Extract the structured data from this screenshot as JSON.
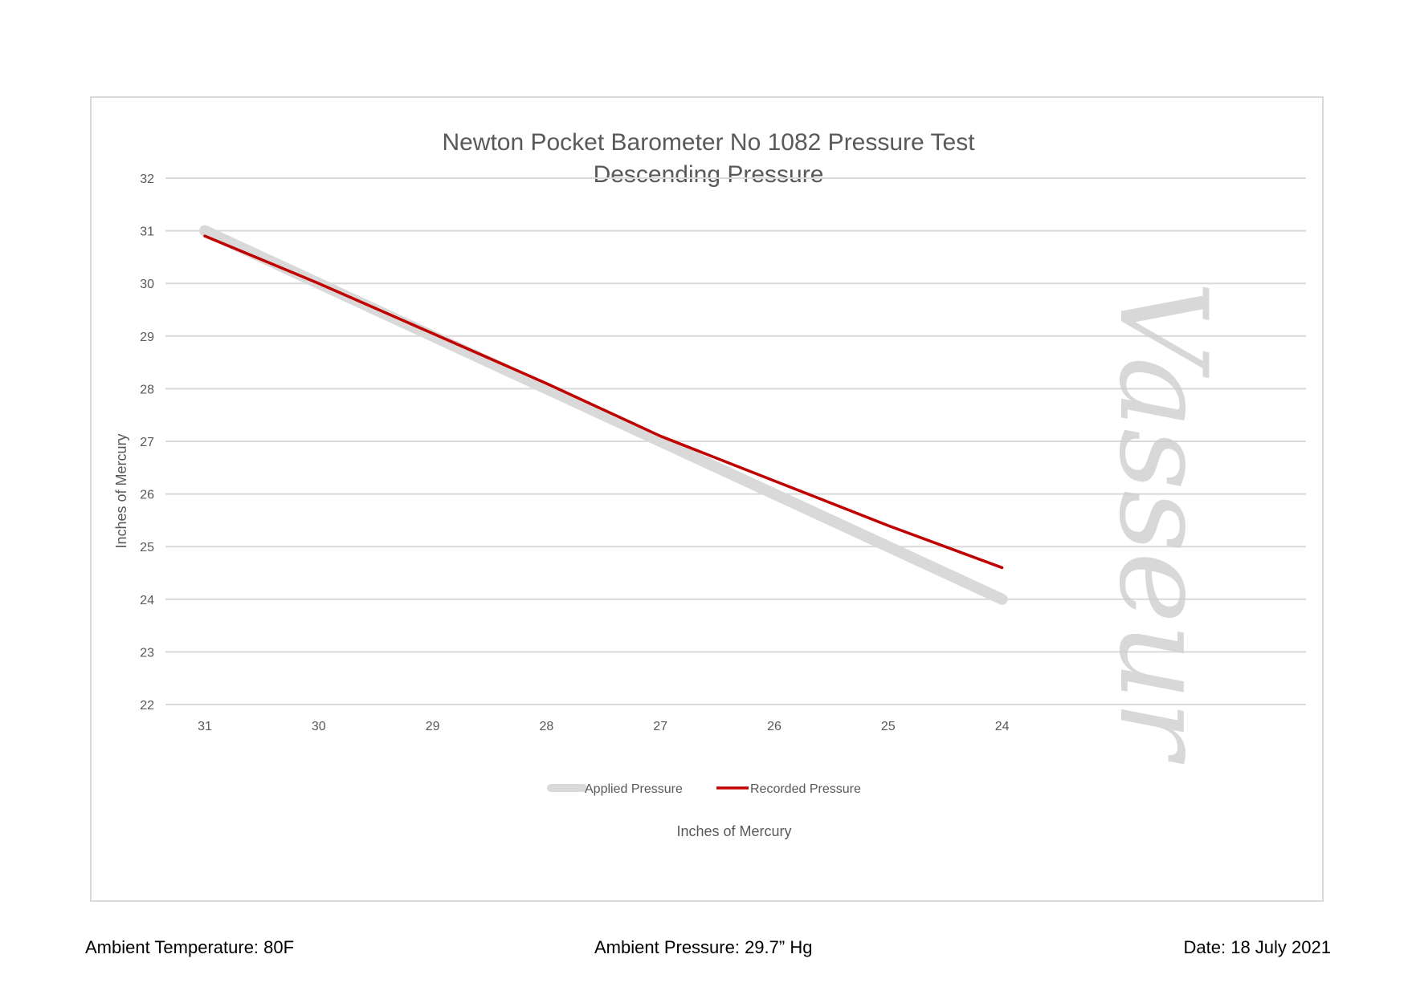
{
  "chart_data": {
    "type": "line",
    "title": "Newton Pocket Barometer No 1082 Pressure Test",
    "subtitle": "Descending Pressure",
    "xlabel": "Inches of Mercury",
    "ylabel": "Inches of Mercury",
    "categories": [
      "31",
      "30",
      "29",
      "28",
      "27",
      "26",
      "25",
      "24"
    ],
    "ylim": [
      22,
      32
    ],
    "yticks": [
      "22",
      "23",
      "24",
      "25",
      "26",
      "27",
      "28",
      "29",
      "30",
      "31",
      "32"
    ],
    "grid": true,
    "legend_position": "bottom",
    "series": [
      {
        "name": "Applied Pressure",
        "color": "#d9d9d9",
        "values": [
          31,
          30,
          29,
          28,
          27,
          26,
          25,
          24
        ]
      },
      {
        "name": "Recorded Pressure",
        "color": "#c00000",
        "values": [
          30.9,
          30.0,
          29.05,
          28.1,
          27.1,
          26.25,
          25.4,
          24.6
        ]
      }
    ],
    "watermark": "Vasseur"
  },
  "footer": {
    "temperature": "Ambient Temperature: 80F",
    "pressure": "Ambient Pressure: 29.7” Hg",
    "date": "Date: 18 July 2021"
  }
}
